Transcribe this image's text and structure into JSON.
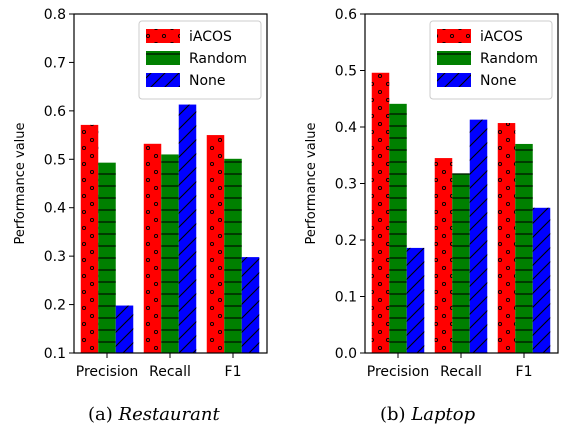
{
  "figure": {
    "panels": [
      {
        "caption_prefix": "(a)",
        "caption_name": "Restaurant"
      },
      {
        "caption_prefix": "(b)",
        "caption_name": "Laptop"
      }
    ]
  },
  "chart_data": [
    {
      "type": "bar",
      "categories": [
        "Precision",
        "Recall",
        "F1"
      ],
      "series": [
        {
          "name": "iACOS",
          "values": [
            0.571,
            0.532,
            0.55
          ],
          "color": "#ff0000",
          "hatch": "dots"
        },
        {
          "name": "Random",
          "values": [
            0.493,
            0.51,
            0.501
          ],
          "color": "#008000",
          "hatch": "horizontal-lines"
        },
        {
          "name": "None",
          "values": [
            0.198,
            0.613,
            0.298
          ],
          "color": "#0000ff",
          "hatch": "diagonal-lines"
        }
      ],
      "ylabel": "Performance value",
      "ylim": [
        0.1,
        0.8
      ],
      "yticks": [
        "0.1",
        "0.2",
        "0.3",
        "0.4",
        "0.5",
        "0.6",
        "0.7",
        "0.8"
      ],
      "legend": "top-right",
      "grid": false
    },
    {
      "type": "bar",
      "categories": [
        "Precision",
        "Recall",
        "F1"
      ],
      "series": [
        {
          "name": "iACOS",
          "values": [
            0.496,
            0.345,
            0.407
          ],
          "color": "#ff0000",
          "hatch": "dots"
        },
        {
          "name": "Random",
          "values": [
            0.441,
            0.318,
            0.37
          ],
          "color": "#008000",
          "hatch": "horizontal-lines"
        },
        {
          "name": "None",
          "values": [
            0.186,
            0.413,
            0.257
          ],
          "color": "#0000ff",
          "hatch": "diagonal-lines"
        }
      ],
      "ylabel": "Performance value",
      "ylim": [
        0.0,
        0.6
      ],
      "yticks": [
        "0.0",
        "0.1",
        "0.2",
        "0.3",
        "0.4",
        "0.5",
        "0.6"
      ],
      "legend": "top-right",
      "grid": false
    }
  ]
}
